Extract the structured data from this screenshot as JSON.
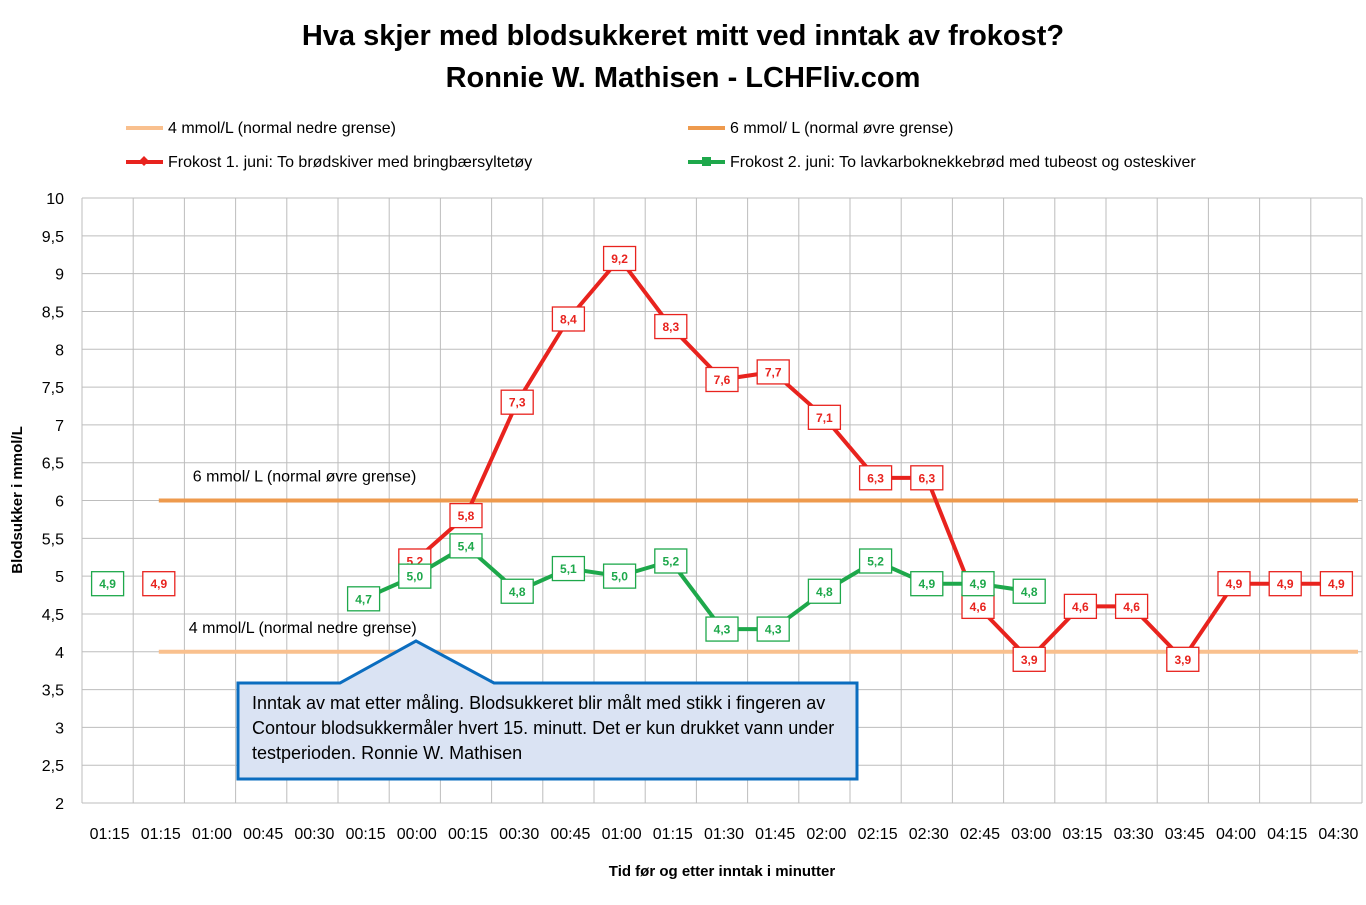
{
  "chart_data": {
    "type": "line",
    "title": [
      "Hva skjer med blodsukkeret mitt ved inntak av frokost?",
      "Ronnie W. Mathisen - LCHFliv.com"
    ],
    "xlabel": "Tid før og etter inntak i minutter",
    "ylabel": "Blodsukker i mmol/L",
    "ylim": [
      2,
      10
    ],
    "yticks": [
      "2",
      "2,5",
      "3",
      "3,5",
      "4",
      "4,5",
      "5",
      "5,5",
      "6",
      "6,5",
      "7",
      "7,5",
      "8",
      "8,5",
      "9",
      "9,5",
      "10"
    ],
    "categories": [
      "01:15",
      "01:15",
      "01:00",
      "00:45",
      "00:30",
      "00:15",
      "00:00",
      "00:15",
      "00:30",
      "00:45",
      "01:00",
      "01:15",
      "01:30",
      "01:45",
      "02:00",
      "02:15",
      "02:30",
      "02:45",
      "03:00",
      "03:15",
      "03:30",
      "03:45",
      "04:00",
      "04:15",
      "04:30"
    ],
    "reference_lines": [
      {
        "name": "4 mmol/L (normal nedre grense)",
        "value": 4,
        "color": "#f9c08e",
        "label": "4 mmol/L (normal nedre grense)"
      },
      {
        "name": "6 mmol/ L (normal øvre grense)",
        "value": 6,
        "color": "#ee9a4d",
        "label": "6 mmol/ L (normal øvre grense)"
      }
    ],
    "series": [
      {
        "name": "Frokost 1. juni: To brødskiver med bringbærsyltetøy",
        "color": "#e8231e",
        "marker": "diamond",
        "points": [
          {
            "x": 1.5,
            "y": 4.9,
            "label": "4,9",
            "connected": false
          },
          {
            "x": 6.5,
            "y": 5.2,
            "label": "5,2"
          },
          {
            "x": 7.5,
            "y": 5.8,
            "label": "5,8"
          },
          {
            "x": 8.5,
            "y": 7.3,
            "label": "7,3"
          },
          {
            "x": 9.5,
            "y": 8.4,
            "label": "8,4"
          },
          {
            "x": 10.5,
            "y": 9.2,
            "label": "9,2"
          },
          {
            "x": 11.5,
            "y": 8.3,
            "label": "8,3"
          },
          {
            "x": 12.5,
            "y": 7.6,
            "label": "7,6"
          },
          {
            "x": 13.5,
            "y": 7.7,
            "label": "7,7"
          },
          {
            "x": 14.5,
            "y": 7.1,
            "label": "7,1"
          },
          {
            "x": 15.5,
            "y": 6.3,
            "label": "6,3"
          },
          {
            "x": 16.5,
            "y": 6.3,
            "label": "6,3"
          },
          {
            "x": 17.5,
            "y": 4.6,
            "label": "4,6"
          },
          {
            "x": 18.5,
            "y": 3.9,
            "label": "3,9"
          },
          {
            "x": 19.5,
            "y": 4.6,
            "label": "4,6"
          },
          {
            "x": 20.5,
            "y": 4.6,
            "label": "4,6"
          },
          {
            "x": 21.5,
            "y": 3.9,
            "label": "3,9"
          },
          {
            "x": 22.5,
            "y": 4.9,
            "label": "4,9"
          },
          {
            "x": 23.5,
            "y": 4.9,
            "label": "4,9"
          },
          {
            "x": 24.5,
            "y": 4.9,
            "label": "4,9"
          }
        ]
      },
      {
        "name": "Frokost 2. juni: To lavkarboknekkebrød med tubeost og osteskiver",
        "color": "#1ea84b",
        "marker": "square",
        "points": [
          {
            "x": 0.5,
            "y": 4.9,
            "label": "4,9",
            "connected": false
          },
          {
            "x": 5.5,
            "y": 4.7,
            "label": "4,7"
          },
          {
            "x": 6.5,
            "y": 5.0,
            "label": "5,0"
          },
          {
            "x": 7.5,
            "y": 5.4,
            "label": "5,4"
          },
          {
            "x": 8.5,
            "y": 4.8,
            "label": "4,8"
          },
          {
            "x": 9.5,
            "y": 5.1,
            "label": "5,1"
          },
          {
            "x": 10.5,
            "y": 5.0,
            "label": "5,0"
          },
          {
            "x": 11.5,
            "y": 5.2,
            "label": "5,2"
          },
          {
            "x": 12.5,
            "y": 4.3,
            "label": "4,3"
          },
          {
            "x": 13.5,
            "y": 4.3,
            "label": "4,3"
          },
          {
            "x": 14.5,
            "y": 4.8,
            "label": "4,8"
          },
          {
            "x": 15.5,
            "y": 5.2,
            "label": "5,2"
          },
          {
            "x": 16.5,
            "y": 4.9,
            "label": "4,9"
          },
          {
            "x": 17.5,
            "y": 4.9,
            "label": "4,9"
          },
          {
            "x": 18.5,
            "y": 4.8,
            "label": "4,8"
          }
        ]
      }
    ],
    "legend": [
      "4 mmol/L (normal nedre grense)",
      "6 mmol/ L (normal øvre grense)",
      "Frokost 1. juni: To brødskiver med bringbærsyltetøy",
      "Frokost 2. juni: To lavkarboknekkebrød med tubeost og osteskiver"
    ],
    "annotation": "Inntak av mat etter måling. Blodsukkeret blir målt med stikk i fingeren av Contour blodsukkermåler hvert 15. minutt. Det er kun drukket vann under testperioden.  Ronnie W. Mathisen"
  }
}
